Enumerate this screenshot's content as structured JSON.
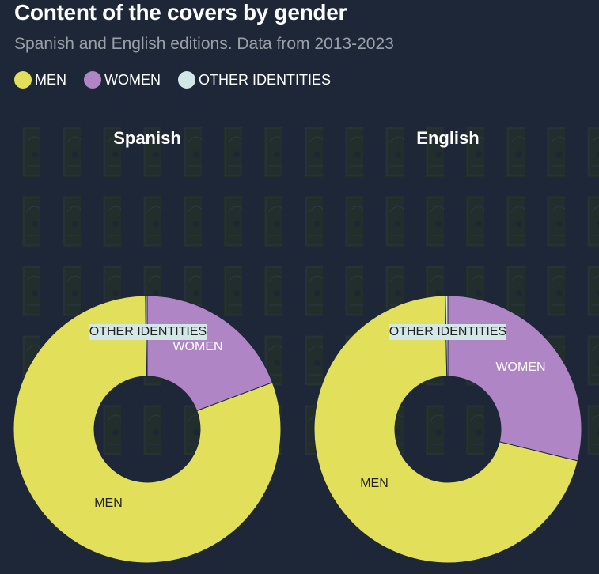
{
  "header": {
    "title": "Content of the covers by gender",
    "subtitle": "Spanish and English editions. Data from 2013-2023"
  },
  "legend": [
    {
      "label": "MEN",
      "color": "#e2e05a"
    },
    {
      "label": "WOMEN",
      "color": "#b085c6"
    },
    {
      "label": "OTHER IDENTITIES",
      "color": "#d3e8e6"
    }
  ],
  "chart_data": [
    {
      "type": "pie",
      "title": "Spanish",
      "categories": [
        "MEN",
        "WOMEN",
        "OTHER IDENTITIES"
      ],
      "values": [
        80.5,
        19.3,
        0.2
      ],
      "colors": [
        "#e2e05a",
        "#b085c6",
        "#d3e8e6"
      ],
      "donut": true
    },
    {
      "type": "pie",
      "title": "English",
      "categories": [
        "MEN",
        "WOMEN",
        "OTHER IDENTITIES"
      ],
      "values": [
        70.9,
        28.8,
        0.3
      ],
      "colors": [
        "#e2e05a",
        "#b085c6",
        "#d3e8e6"
      ],
      "donut": true
    }
  ]
}
